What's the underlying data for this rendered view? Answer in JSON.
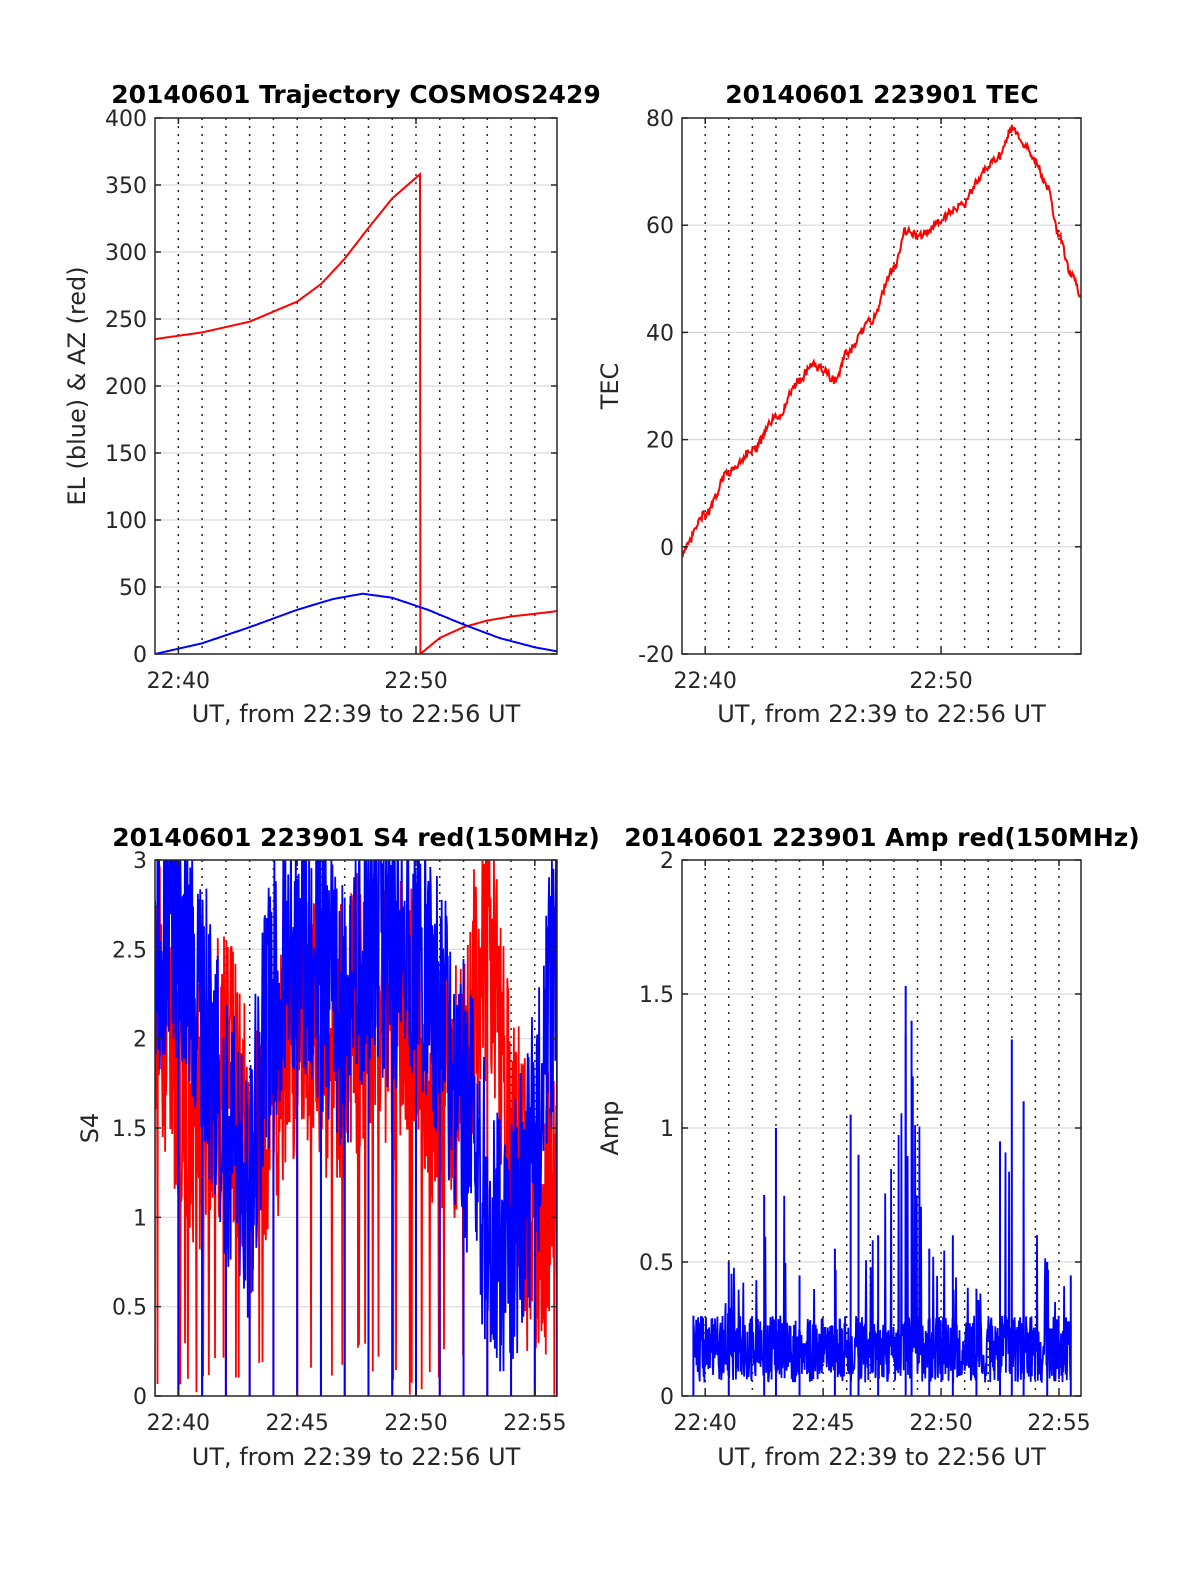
{
  "colors": {
    "red": "#ff0000",
    "blue": "#0000ff",
    "grid": "#262626"
  },
  "chart_data": [
    {
      "type": "line",
      "title": "20140601 Trajectory COSMOS2429",
      "xlabel": "UT, from 22:39 to 22:56 UT",
      "ylabel": "EL (blue) & AZ (red)",
      "xlim": [
        "22:39:01",
        "22:55:56"
      ],
      "ylim": [
        0,
        400
      ],
      "yticks": [
        0,
        50,
        100,
        150,
        200,
        250,
        300,
        350,
        400
      ],
      "yticklabels": [
        "0",
        "50",
        "100",
        "150",
        "200",
        "250",
        "300",
        "350",
        "400"
      ],
      "xticks": [
        "22:40",
        "22:50"
      ],
      "grid": {
        "y": "solid",
        "x": "dotted-every-minute"
      },
      "series": [
        {
          "color": "red",
          "x": [
            "22:39:01",
            "22:41:00",
            "22:43:00",
            "22:45:00",
            "22:46:00",
            "22:47:00",
            "22:48:00",
            "22:49:00",
            "22:50:10",
            "22:50:11",
            "22:51:00",
            "22:52:00",
            "22:53:00",
            "22:54:00",
            "22:55:00",
            "22:55:56"
          ],
          "values": [
            235,
            240,
            248,
            263,
            276,
            295,
            318,
            340,
            358,
            0,
            12,
            20,
            25,
            28,
            30,
            32
          ]
        },
        {
          "color": "blue",
          "x": [
            "22:39:01",
            "22:41:00",
            "22:43:00",
            "22:45:00",
            "22:46:30",
            "22:47:45",
            "22:49:00",
            "22:50:30",
            "22:52:00",
            "22:53:30",
            "22:55:00",
            "22:55:56"
          ],
          "values": [
            0,
            8,
            20,
            33,
            41,
            45,
            42,
            33,
            22,
            12,
            5,
            2
          ]
        }
      ]
    },
    {
      "type": "line",
      "title": "20140601 223901 TEC",
      "xlabel": "UT, from 22:39 to 22:56 UT",
      "ylabel": "TEC",
      "xlim": [
        "22:39:01",
        "22:55:56"
      ],
      "ylim": [
        -20,
        80
      ],
      "yticks": [
        -20,
        0,
        20,
        40,
        60,
        80
      ],
      "yticklabels": [
        "-20",
        "0",
        "20",
        "40",
        "60",
        "80"
      ],
      "xticks": [
        "22:40",
        "22:50"
      ],
      "grid": {
        "y": "solid",
        "x": "dotted-every-minute"
      },
      "series": [
        {
          "color": "red",
          "x": [
            "22:39:01",
            "22:40:00",
            "22:41:00",
            "22:42:00",
            "22:43:00",
            "22:44:00",
            "22:44:30",
            "22:45:00",
            "22:45:30",
            "22:46:00",
            "22:47:00",
            "22:48:00",
            "22:48:30",
            "22:49:00",
            "22:49:30",
            "22:50:00",
            "22:50:30",
            "22:51:00",
            "22:51:30",
            "22:52:00",
            "22:52:30",
            "22:53:00",
            "22:53:30",
            "22:54:00",
            "22:54:30",
            "22:55:00",
            "22:55:30",
            "22:55:56"
          ],
          "values": [
            -1,
            6,
            14,
            18,
            24,
            31,
            34,
            33,
            31,
            36,
            42,
            52,
            59,
            58,
            59,
            61,
            63,
            64,
            68,
            71,
            73,
            78,
            75,
            72,
            67,
            58,
            51,
            47
          ]
        }
      ]
    },
    {
      "type": "line",
      "title": "20140601 223901 S4 red(150MHz)",
      "xlabel": "UT, from 22:39 to 22:56 UT",
      "ylabel": "S4",
      "xlim": [
        "22:39:01",
        "22:55:56"
      ],
      "ylim": [
        0,
        3
      ],
      "yticks": [
        0,
        0.5,
        1,
        1.5,
        2,
        2.5,
        3
      ],
      "yticklabels": [
        "0",
        "0.5",
        "1",
        "1.5",
        "2",
        "2.5",
        "3"
      ],
      "xticks": [
        "22:40",
        "22:45",
        "22:50",
        "22:55"
      ],
      "grid": {
        "y": "solid",
        "x": "dotted-every-minute"
      },
      "series": [
        {
          "color": "red",
          "x": [
            "22:39:00",
            "22:40:00",
            "22:41:00",
            "22:42:00",
            "22:43:00",
            "22:44:00",
            "22:45:00",
            "22:46:00",
            "22:47:00",
            "22:48:00",
            "22:49:00",
            "22:50:00",
            "22:51:00",
            "22:52:00",
            "22:53:00",
            "22:54:00",
            "22:55:00",
            "22:55:56"
          ],
          "values": [
            2.4,
            1.8,
            1.5,
            1.9,
            1.3,
            1.6,
            2.2,
            1.9,
            2.0,
            2.3,
            2.1,
            2.1,
            1.6,
            1.8,
            2.6,
            1.4,
            1.0,
            1.2
          ]
        },
        {
          "color": "blue",
          "x": [
            "22:39:00",
            "22:40:00",
            "22:41:00",
            "22:42:00",
            "22:43:00",
            "22:44:00",
            "22:45:00",
            "22:46:00",
            "22:47:00",
            "22:48:00",
            "22:49:00",
            "22:50:00",
            "22:51:00",
            "22:52:00",
            "22:53:00",
            "22:54:00",
            "22:55:00",
            "22:55:56"
          ],
          "values": [
            2.6,
            2.7,
            2.2,
            1.4,
            1.2,
            2.3,
            2.6,
            2.4,
            2.1,
            2.6,
            2.5,
            2.6,
            2.1,
            1.7,
            1.0,
            0.8,
            1.4,
            2.6
          ]
        }
      ]
    },
    {
      "type": "line",
      "title": "20140601 223901 Amp red(150MHz)",
      "xlabel": "UT, from 22:39 to 22:56 UT",
      "ylabel": "Amp",
      "xlim": [
        "22:39:01",
        "22:55:56"
      ],
      "ylim": [
        0,
        2
      ],
      "yticks": [
        0,
        0.5,
        1,
        1.5,
        2
      ],
      "yticklabels": [
        "0",
        "0.5",
        "1",
        "1.5",
        "2"
      ],
      "xticks": [
        "22:40",
        "22:45",
        "22:50",
        "22:55"
      ],
      "grid": {
        "y": "solid",
        "x": "dotted-every-minute"
      },
      "series": [
        {
          "color": "blue",
          "x": [
            "22:39:30",
            "22:41:00",
            "22:42:30",
            "22:43:00",
            "22:44:00",
            "22:45:30",
            "22:46:10",
            "22:46:30",
            "22:47:20",
            "22:48:30",
            "22:48:45",
            "22:49:30",
            "22:50:30",
            "22:51:30",
            "22:52:30",
            "22:53:00",
            "22:53:30",
            "22:54:30",
            "22:55:30"
          ],
          "values": [
            0.3,
            0.5,
            0.75,
            1.0,
            0.45,
            0.55,
            1.05,
            0.9,
            0.6,
            1.53,
            1.4,
            0.55,
            0.6,
            0.4,
            0.95,
            1.33,
            1.1,
            0.5,
            0.45
          ]
        }
      ]
    }
  ]
}
